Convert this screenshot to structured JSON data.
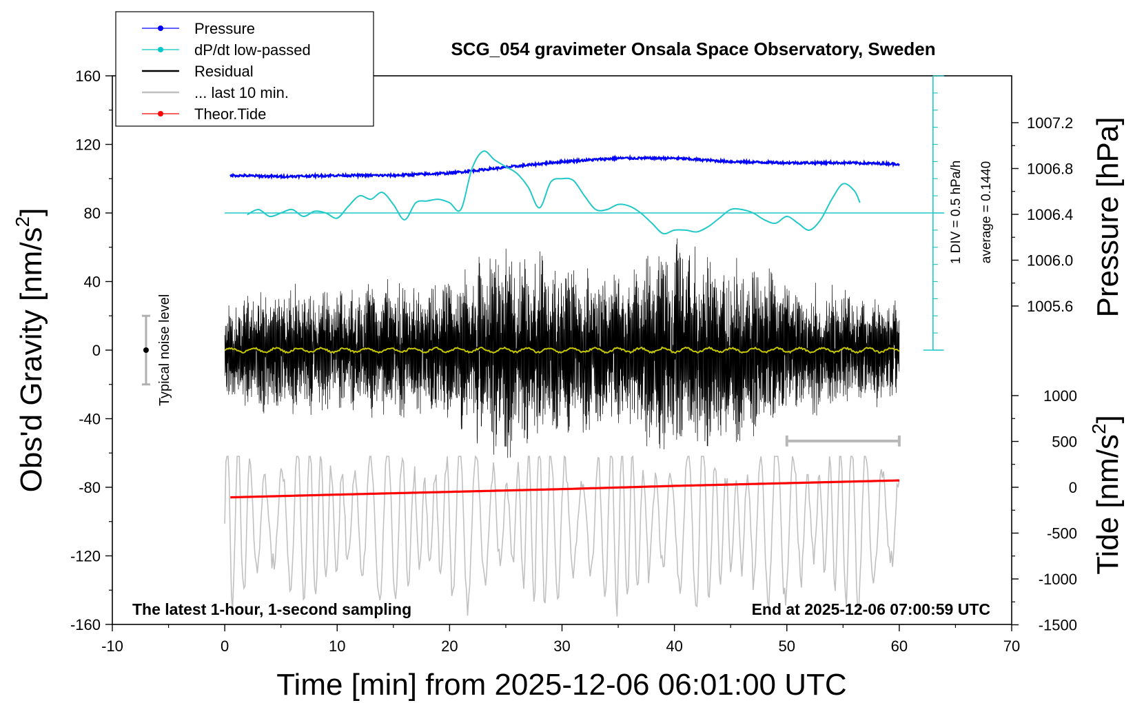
{
  "chart_data": {
    "type": "line",
    "title": "SCG_054 gravimeter Onsala Space Observatory, Sweden",
    "xlabel": "Time [min] from 2025-12-06 06:01:00 UTC",
    "ylabel_left": "Obs'd Gravity [nm/s",
    "ylabel_left_sup": "2",
    "ylabel_left_close": "]",
    "ylabel_right_pressure": "Pressure [hPa]",
    "ylabel_right_tide": "Tide [nm/s",
    "ylabel_right_tide_sup": "2",
    "ylabel_right_tide_close": "]",
    "xlim": [
      -10,
      70
    ],
    "ylim": [
      -160,
      160
    ],
    "x_ticks": [
      "-10",
      "0",
      "10",
      "20",
      "30",
      "40",
      "50",
      "60",
      "70"
    ],
    "y_ticks": [
      "160",
      "120",
      "80",
      "40",
      "0",
      "-40",
      "-80",
      "-120",
      "-160"
    ],
    "pressure_ticks": [
      "1007.2",
      "1006.8",
      "1006.4",
      "1006.0",
      "1005.6"
    ],
    "pressure_tick_values": [
      1007.2,
      1006.8,
      1006.4,
      1006.0,
      1005.6
    ],
    "tide_ticks": [
      "1000",
      "500",
      "0",
      "-500",
      "-1000",
      "-1500"
    ],
    "tide_tick_values": [
      1000,
      500,
      0,
      -500,
      -1000,
      -1500
    ],
    "legend": {
      "placement": "top-left",
      "items": [
        {
          "label": "Pressure",
          "color": "#0000ff",
          "marker": true
        },
        {
          "label": "dP/dt low-passed",
          "color": "#00c8c8",
          "marker": true
        },
        {
          "label": "Residual",
          "color": "#000000",
          "marker": false
        },
        {
          "label": "... last 10 min.",
          "color": "#c0c0c0",
          "marker": false
        },
        {
          "label": "Theor.Tide",
          "color": "#ff0000",
          "marker": true
        }
      ]
    },
    "annotations": {
      "bottom_left": "The latest 1-hour, 1-second sampling",
      "bottom_right": "End at 2025-12-06 07:00:59 UTC",
      "noise_label": "Typical noise level",
      "div_label": "1 DIV = 0.5 hPa/h",
      "average_label": "average = 0.1440"
    },
    "colors": {
      "pressure": "#0000ff",
      "dpdt": "#20c8c8",
      "residual": "#000000",
      "last10": "#c0c0c0",
      "tide": "#ff0000",
      "smoothed": "#c8c800"
    },
    "series": [
      {
        "name": "Pressure",
        "axis": "pressure",
        "x": [
          0.5,
          5,
          10,
          15,
          20,
          25,
          30,
          35,
          40,
          45,
          50,
          55,
          60
        ],
        "values": [
          1006.74,
          1006.73,
          1006.74,
          1006.74,
          1006.76,
          1006.81,
          1006.86,
          1006.89,
          1006.89,
          1006.86,
          1006.85,
          1006.85,
          1006.84
        ]
      },
      {
        "name": "dP/dt low-passed",
        "axis": "left",
        "x": [
          2,
          3,
          4,
          5,
          6,
          7,
          8,
          9,
          10,
          11,
          12,
          13,
          14,
          15,
          16,
          17,
          18,
          19,
          20,
          21,
          22,
          23,
          24,
          25,
          26,
          27,
          28,
          29,
          30,
          31,
          32,
          33,
          34,
          35,
          36,
          37,
          38,
          39,
          40,
          41,
          42,
          43,
          44,
          45,
          46,
          47,
          48,
          49,
          50,
          51,
          52,
          53,
          54,
          55,
          56,
          56.5
        ],
        "values": [
          79,
          82,
          78,
          80,
          82,
          78,
          81,
          80,
          77,
          84,
          90,
          88,
          92,
          85,
          76,
          86,
          87,
          88,
          86,
          82,
          106,
          116,
          111,
          107,
          103,
          95,
          83,
          98,
          100,
          99,
          90,
          82,
          82,
          85,
          84,
          80,
          74,
          68,
          70,
          70,
          69,
          72,
          77,
          82,
          82,
          80,
          76,
          74,
          78,
          74,
          70,
          76,
          88,
          97,
          93,
          86
        ]
      },
      {
        "name": "Residual",
        "axis": "left",
        "x": [
          0,
          60
        ],
        "values": [
          0,
          0
        ]
      },
      {
        "name": "... last 10 min.",
        "axis": "left",
        "x": [
          0,
          60
        ],
        "values": [
          -100,
          -100
        ]
      },
      {
        "name": "Theor.Tide",
        "axis": "tide",
        "x": [
          0.5,
          10,
          20,
          30,
          40,
          50,
          60
        ],
        "values": [
          -110,
          -80,
          -50,
          -20,
          15,
          45,
          75
        ]
      }
    ],
    "residual_envelope": {
      "x": [
        0,
        5,
        10,
        15,
        20,
        25,
        30,
        35,
        40,
        45,
        50,
        55,
        60
      ],
      "amp": [
        25,
        35,
        30,
        35,
        35,
        55,
        45,
        40,
        55,
        50,
        35,
        30,
        25
      ]
    },
    "noise_bar": {
      "x": -7,
      "y_low": -20,
      "y_high": 20
    },
    "ten_min_bar": {
      "x_start": 50,
      "x_end": 60,
      "y": -53
    }
  }
}
